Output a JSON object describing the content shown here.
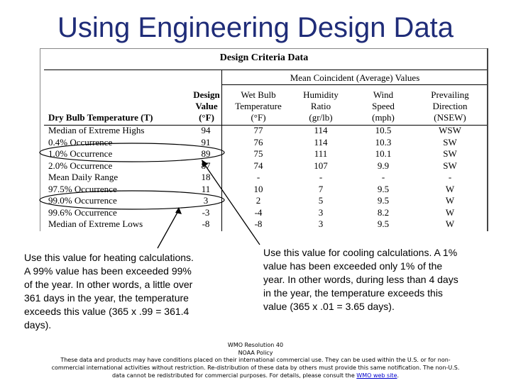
{
  "title": "Using Engineering Design Data",
  "table": {
    "title": "Design Criteria Data",
    "group_header": "Mean Coincident (Average) Values",
    "col_headers": [
      [
        "Design",
        "Value",
        "(°F)"
      ],
      [
        "Wet Bulb",
        "Temperature",
        "(°F)"
      ],
      [
        "Humidity",
        "Ratio",
        "(gr/lb)"
      ],
      [
        "Wind",
        "Speed",
        "(mph)"
      ],
      [
        "Prevailing",
        "Direction",
        "(NSEW)"
      ]
    ],
    "row_header": "Dry Bulb Temperature (T)",
    "rows": [
      {
        "label": "Median of Extreme Highs",
        "values": [
          "94",
          "77",
          "114",
          "10.5",
          "WSW"
        ]
      },
      {
        "label": "0.4% Occurrence",
        "values": [
          "91",
          "76",
          "114",
          "10.3",
          "SW"
        ]
      },
      {
        "label": "1.0% Occurrence",
        "values": [
          "89",
          "75",
          "111",
          "10.1",
          "SW"
        ]
      },
      {
        "label": "2.0% Occurrence",
        "values": [
          "87",
          "74",
          "107",
          "9.9",
          "SW"
        ]
      },
      {
        "label": "Mean Daily Range",
        "values": [
          "18",
          "-",
          "-",
          "-",
          "-"
        ]
      },
      {
        "label": "97.5% Occurrence",
        "values": [
          "11",
          "10",
          "7",
          "9.5",
          "W"
        ]
      },
      {
        "label": "99.0% Occurrence",
        "values": [
          "3",
          "2",
          "5",
          "9.5",
          "W"
        ]
      },
      {
        "label": "99.6% Occurrence",
        "values": [
          "-3",
          "-4",
          "3",
          "8.2",
          "W"
        ]
      },
      {
        "label": "Median of Extreme Lows",
        "values": [
          "-8",
          "-8",
          "3",
          "9.5",
          "W"
        ]
      }
    ]
  },
  "heating_note": "Use this value for heating calculations. A 99% value has been exceeded 99% of the year. In other words, a little over 361 days in the year, the temperature exceeds this value (365 x .99 = 361.4 days).",
  "cooling_note": "Use this value for cooling calculations. A 1% value has been exceeded only 1% of the year. In other words, during less than 4 days in the year, the temperature exceeds this value (365 x .01 = 3.65 days).",
  "wmo": {
    "resolution": "WMO Resolution 40",
    "policy": "NOAA Policy",
    "line1": "These data and products may have conditions placed on their international commercial use. They can be used within the U.S. or for non-",
    "line2": "commercial international activities without restriction. Re-distribution of these data by others must provide this same notification. The non-U.S.",
    "line3_pre": "data cannot be redistributed for commercial purposes. For details, please consult the",
    "link": "WMO web site",
    "line3_post": "."
  }
}
